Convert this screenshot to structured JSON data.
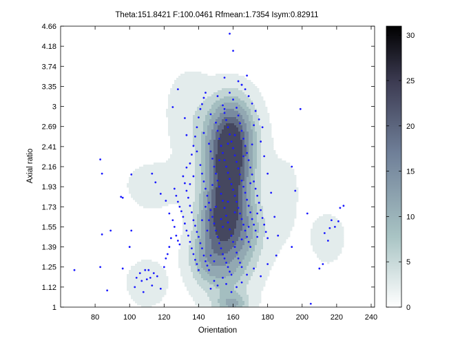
{
  "chart_data": {
    "type": "contour",
    "title": "Theta:151.8421 F:100.0461 Rfmean:1.7354 Isym:0.82911",
    "xlabel": "Orientation",
    "ylabel": "Axial ratio",
    "xlim": [
      60,
      242
    ],
    "ylim": [
      1,
      4.66
    ],
    "x_ticks": [
      "80",
      "100",
      "120",
      "140",
      "160",
      "180",
      "200",
      "220",
      "240"
    ],
    "y_ticks": [
      "1",
      "1.12",
      "1.25",
      "1.39",
      "1.55",
      "1.73",
      "1.93",
      "2.16",
      "2.41",
      "2.69",
      "3",
      "3.35",
      "3.74",
      "4.18",
      "4.66"
    ],
    "colorbar": {
      "range": [
        0,
        31
      ],
      "ticks": [
        "0",
        "5",
        "10",
        "15",
        "20",
        "25",
        "30"
      ],
      "colors": [
        "#ffffff",
        "#a9c4c4",
        "#6f7f98",
        "#3d3c53",
        "#000000"
      ]
    },
    "contour_levels": [
      1,
      4,
      7,
      10,
      14,
      18,
      22
    ],
    "density_peaks": [
      {
        "x": 157,
        "y": 2.05,
        "value": 24,
        "sx": 9,
        "sy": 0.55
      },
      {
        "x": 150,
        "y": 1.55,
        "value": 10,
        "sx": 8,
        "sy": 0.22
      },
      {
        "x": 160,
        "y": 2.6,
        "value": 12,
        "sx": 9,
        "sy": 0.4
      },
      {
        "x": 143,
        "y": 1.3,
        "value": 6,
        "sx": 7,
        "sy": 0.12
      },
      {
        "x": 168,
        "y": 1.5,
        "value": 6,
        "sx": 8,
        "sy": 0.2
      },
      {
        "x": 135,
        "y": 2.9,
        "value": 3,
        "sx": 9,
        "sy": 0.5
      },
      {
        "x": 113,
        "y": 1.95,
        "value": 2,
        "sx": 12,
        "sy": 0.2
      },
      {
        "x": 110,
        "y": 1.15,
        "value": 3,
        "sx": 8,
        "sy": 0.1
      },
      {
        "x": 160,
        "y": 1.02,
        "value": 7,
        "sx": 6,
        "sy": 0.04
      },
      {
        "x": 215,
        "y": 1.47,
        "value": 3.5,
        "sx": 6,
        "sy": 0.12
      },
      {
        "x": 190,
        "y": 1.85,
        "value": 1.5,
        "sx": 8,
        "sy": 0.4
      }
    ],
    "scatter_points": [
      [
        68,
        1.23
      ],
      [
        83,
        1.25
      ],
      [
        84,
        1.49
      ],
      [
        83,
        2.25
      ],
      [
        84,
        2.08
      ],
      [
        87,
        1.1
      ],
      [
        89,
        1.52
      ],
      [
        95,
        1.83
      ],
      [
        96,
        1.82
      ],
      [
        96,
        1.24
      ],
      [
        100,
        1.39
      ],
      [
        101,
        1.52
      ],
      [
        101,
        2.07
      ],
      [
        103,
        1.12
      ],
      [
        104,
        1.18
      ],
      [
        106,
        1.21
      ],
      [
        107,
        1.16
      ],
      [
        108,
        1.09
      ],
      [
        109,
        1.23
      ],
      [
        110,
        1.17
      ],
      [
        111,
        1.23
      ],
      [
        112,
        1.18
      ],
      [
        113,
        1.13
      ],
      [
        114,
        1.21
      ],
      [
        116,
        1.19
      ],
      [
        118,
        1.11
      ],
      [
        120,
        1.25
      ],
      [
        121,
        1.31
      ],
      [
        122,
        1.34
      ],
      [
        123,
        1.39
      ],
      [
        124,
        1.46
      ],
      [
        113,
        2.08
      ],
      [
        115,
        1.98
      ],
      [
        118,
        1.86
      ],
      [
        121,
        1.79
      ],
      [
        123,
        1.67
      ],
      [
        125,
        1.61
      ],
      [
        126,
        1.55
      ],
      [
        127,
        1.48
      ],
      [
        128,
        1.44
      ],
      [
        129,
        1.41
      ],
      [
        126,
        1.91
      ],
      [
        127,
        1.84
      ],
      [
        128,
        1.78
      ],
      [
        129,
        1.73
      ],
      [
        130,
        1.69
      ],
      [
        131,
        1.64
      ],
      [
        132,
        1.58
      ],
      [
        133,
        1.52
      ],
      [
        134,
        1.48
      ],
      [
        135,
        1.43
      ],
      [
        136,
        1.38
      ],
      [
        137,
        1.34
      ],
      [
        138,
        1.3
      ],
      [
        139,
        1.27
      ],
      [
        140,
        1.23
      ],
      [
        131,
        2.05
      ],
      [
        132,
        1.97
      ],
      [
        133,
        1.89
      ],
      [
        134,
        1.82
      ],
      [
        135,
        1.74
      ],
      [
        136,
        1.68
      ],
      [
        137,
        1.61
      ],
      [
        138,
        1.56
      ],
      [
        139,
        1.51
      ],
      [
        140,
        1.47
      ],
      [
        141,
        1.42
      ],
      [
        142,
        1.38
      ],
      [
        143,
        1.33
      ],
      [
        144,
        1.29
      ],
      [
        145,
        1.26
      ],
      [
        146,
        1.23
      ],
      [
        135,
        2.2
      ],
      [
        136,
        2.31
      ],
      [
        137,
        2.42
      ],
      [
        138,
        2.55
      ],
      [
        139,
        2.68
      ],
      [
        140,
        2.83
      ],
      [
        141,
        2.96
      ],
      [
        142,
        3.04
      ],
      [
        143,
        3.15
      ],
      [
        144,
        3.24
      ],
      [
        125,
        2.99
      ],
      [
        128,
        3.3
      ],
      [
        132,
        2.82
      ],
      [
        133,
        2.57
      ],
      [
        141,
        2.18
      ],
      [
        142,
        2.08
      ],
      [
        143,
        1.99
      ],
      [
        144,
        1.91
      ],
      [
        145,
        1.84
      ],
      [
        146,
        1.77
      ],
      [
        147,
        1.7
      ],
      [
        148,
        1.64
      ],
      [
        149,
        1.58
      ],
      [
        150,
        1.52
      ],
      [
        151,
        1.47
      ],
      [
        152,
        1.42
      ],
      [
        153,
        1.38
      ],
      [
        154,
        1.34
      ],
      [
        155,
        1.31
      ],
      [
        156,
        1.28
      ],
      [
        157,
        1.25
      ],
      [
        158,
        1.22
      ],
      [
        159,
        1.2
      ],
      [
        146,
        2.45
      ],
      [
        147,
        2.35
      ],
      [
        148,
        2.26
      ],
      [
        149,
        2.16
      ],
      [
        150,
        2.08
      ],
      [
        151,
        2.0
      ],
      [
        152,
        1.93
      ],
      [
        153,
        1.86
      ],
      [
        154,
        1.79
      ],
      [
        155,
        1.72
      ],
      [
        156,
        1.65
      ],
      [
        157,
        1.59
      ],
      [
        158,
        1.53
      ],
      [
        159,
        1.48
      ],
      [
        160,
        1.43
      ],
      [
        161,
        1.39
      ],
      [
        162,
        1.35
      ],
      [
        163,
        1.31
      ],
      [
        164,
        1.28
      ],
      [
        165,
        1.25
      ],
      [
        150,
        2.75
      ],
      [
        151,
        2.63
      ],
      [
        152,
        2.52
      ],
      [
        153,
        2.42
      ],
      [
        154,
        2.33
      ],
      [
        155,
        2.24
      ],
      [
        156,
        2.16
      ],
      [
        157,
        2.09
      ],
      [
        158,
        2.02
      ],
      [
        159,
        1.96
      ],
      [
        160,
        1.9
      ],
      [
        161,
        1.84
      ],
      [
        162,
        1.78
      ],
      [
        163,
        1.72
      ],
      [
        164,
        1.67
      ],
      [
        165,
        1.62
      ],
      [
        166,
        1.57
      ],
      [
        167,
        1.52
      ],
      [
        168,
        1.47
      ],
      [
        169,
        1.43
      ],
      [
        170,
        1.39
      ],
      [
        154,
        3.02
      ],
      [
        155,
        2.9
      ],
      [
        156,
        2.79
      ],
      [
        157,
        2.68
      ],
      [
        158,
        2.58
      ],
      [
        159,
        2.48
      ],
      [
        160,
        2.39
      ],
      [
        161,
        2.3
      ],
      [
        162,
        2.22
      ],
      [
        163,
        2.14
      ],
      [
        164,
        2.07
      ],
      [
        165,
        2.0
      ],
      [
        166,
        1.93
      ],
      [
        167,
        1.87
      ],
      [
        168,
        1.8
      ],
      [
        169,
        1.74
      ],
      [
        170,
        1.68
      ],
      [
        171,
        1.62
      ],
      [
        172,
        1.57
      ],
      [
        173,
        1.52
      ],
      [
        174,
        1.47
      ],
      [
        158,
        3.24
      ],
      [
        160,
        3.12
      ],
      [
        162,
        2.98
      ],
      [
        163,
        2.86
      ],
      [
        164,
        2.74
      ],
      [
        165,
        2.63
      ],
      [
        166,
        2.52
      ],
      [
        167,
        2.42
      ],
      [
        168,
        2.33
      ],
      [
        169,
        2.24
      ],
      [
        170,
        2.15
      ],
      [
        171,
        2.07
      ],
      [
        172,
        1.99
      ],
      [
        173,
        1.91
      ],
      [
        174,
        1.84
      ],
      [
        175,
        1.77
      ],
      [
        176,
        1.7
      ],
      [
        177,
        1.63
      ],
      [
        178,
        1.57
      ],
      [
        179,
        1.51
      ],
      [
        180,
        1.46
      ],
      [
        163,
        3.45
      ],
      [
        165,
        3.38
      ],
      [
        167,
        3.3
      ],
      [
        169,
        3.18
      ],
      [
        171,
        3.05
      ],
      [
        173,
        2.93
      ],
      [
        175,
        2.8
      ],
      [
        177,
        2.68
      ],
      [
        168,
        3.56
      ],
      [
        172,
        2.71
      ],
      [
        176,
        2.48
      ],
      [
        178,
        2.29
      ],
      [
        180,
        2.08
      ],
      [
        182,
        1.87
      ],
      [
        184,
        1.64
      ],
      [
        186,
        1.48
      ],
      [
        147,
        1.11
      ],
      [
        149,
        1.16
      ],
      [
        151,
        1.13
      ],
      [
        154,
        1.18
      ],
      [
        156,
        1.14
      ],
      [
        159,
        1.09
      ],
      [
        162,
        1.12
      ],
      [
        165,
        1.15
      ],
      [
        168,
        1.2
      ],
      [
        172,
        1.24
      ],
      [
        176,
        1.19
      ],
      [
        180,
        1.27
      ],
      [
        185,
        1.33
      ],
      [
        158,
        4.48
      ],
      [
        160,
        4.08
      ],
      [
        155,
        3.52
      ],
      [
        165,
        3.38
      ],
      [
        199,
        2.96
      ],
      [
        194,
        2.16
      ],
      [
        196,
        1.89
      ],
      [
        194,
        1.39
      ],
      [
        203,
        1.67
      ],
      [
        205,
        1.02
      ],
      [
        210,
        1.24
      ],
      [
        213,
        1.5
      ],
      [
        215,
        1.44
      ],
      [
        217,
        1.61
      ],
      [
        219,
        1.55
      ],
      [
        222,
        1.72
      ],
      [
        224,
        1.74
      ],
      [
        216,
        1.54
      ],
      [
        221,
        1.6
      ],
      [
        212,
        1.27
      ],
      [
        147,
        1.33
      ],
      [
        149,
        1.29
      ],
      [
        145,
        1.52
      ],
      [
        148,
        1.95
      ],
      [
        152,
        2.24
      ],
      [
        157,
        2.45
      ],
      [
        161,
        2.57
      ],
      [
        166,
        2.29
      ],
      [
        170,
        1.97
      ],
      [
        174,
        1.67
      ],
      [
        139,
        2.35
      ],
      [
        137,
        2.05
      ],
      [
        135,
        1.96
      ],
      [
        133,
        2.15
      ],
      [
        143,
        2.6
      ],
      [
        147,
        2.88
      ],
      [
        151,
        3.18
      ],
      [
        155,
        2.96
      ],
      [
        153,
        1.62
      ],
      [
        157,
        1.78
      ],
      [
        161,
        1.68
      ],
      [
        165,
        1.45
      ],
      [
        169,
        1.55
      ],
      [
        171,
        2.44
      ],
      [
        142,
        1.61
      ],
      [
        144,
        1.73
      ],
      [
        146,
        1.61
      ],
      [
        150,
        1.73
      ],
      [
        154,
        1.55
      ]
    ]
  }
}
